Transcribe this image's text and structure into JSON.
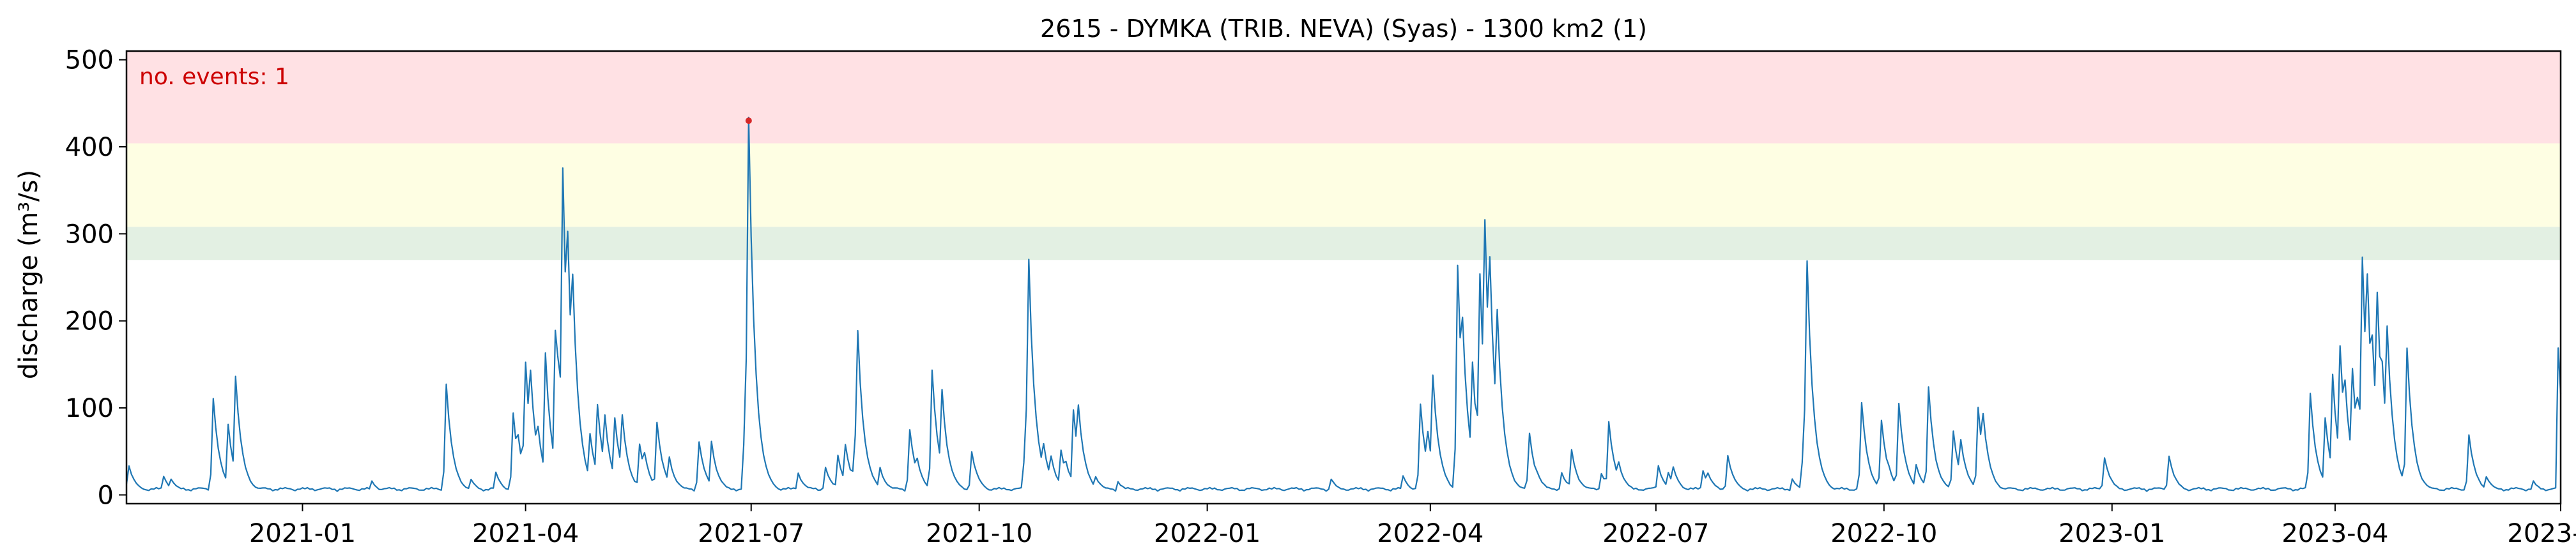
{
  "chart_data": {
    "type": "line",
    "title": "2615 - DYMKA (TRIB. NEVA) (Syas) - 1300 km2 (1)",
    "xlabel": "",
    "ylabel": "discharge (m³/s)",
    "xlim": [
      "2020-10-22",
      "2023-07-01"
    ],
    "ylim": [
      -10,
      510
    ],
    "x_ticks": [
      "2021-01",
      "2021-04",
      "2021-07",
      "2021-10",
      "2022-01",
      "2022-04",
      "2022-07",
      "2022-10",
      "2023-01",
      "2023-04",
      "2023-07"
    ],
    "y_ticks": [
      0,
      100,
      200,
      300,
      400,
      500
    ],
    "bands": [
      {
        "from": 270,
        "to": 308,
        "color": "#e3f0e3"
      },
      {
        "from": 308,
        "to": 404,
        "color": "#fefee3"
      },
      {
        "from": 404,
        "to": 510,
        "color": "#ffe1e4"
      }
    ],
    "annotation": "no. events: 1",
    "event": {
      "date": "2021-06-30",
      "value": 430,
      "color": "#d62728"
    },
    "series_color": "#1f77b4",
    "series": [
      {
        "peaks": [
          [
            "2020-10-23",
            30,
            3
          ],
          [
            "2020-11-06",
            18,
            2
          ],
          [
            "2020-11-09",
            15,
            2
          ],
          [
            "2020-11-26",
            108,
            2
          ],
          [
            "2020-12-02",
            78,
            2
          ],
          [
            "2020-12-05",
            133,
            2
          ],
          [
            "2021-01-29",
            12,
            2
          ],
          [
            "2021-02-28",
            124,
            2
          ],
          [
            "2021-03-10",
            14,
            2
          ],
          [
            "2021-03-20",
            22,
            2
          ],
          [
            "2021-03-27",
            90,
            2
          ],
          [
            "2021-03-29",
            65,
            2
          ],
          [
            "2021-04-01",
            150,
            3
          ],
          [
            "2021-04-03",
            140,
            2
          ],
          [
            "2021-04-06",
            75,
            2
          ],
          [
            "2021-04-09",
            160,
            2
          ],
          [
            "2021-04-13",
            185,
            2
          ],
          [
            "2021-04-14",
            155,
            2
          ],
          [
            "2021-04-16",
            372,
            3
          ],
          [
            "2021-04-18",
            300,
            3
          ],
          [
            "2021-04-20",
            250,
            3
          ],
          [
            "2021-04-27",
            68,
            2
          ],
          [
            "2021-04-30",
            100,
            2
          ],
          [
            "2021-05-03",
            88,
            2
          ],
          [
            "2021-05-07",
            85,
            2
          ],
          [
            "2021-05-10",
            88,
            2
          ],
          [
            "2021-05-17",
            55,
            2
          ],
          [
            "2021-05-19",
            45,
            2
          ],
          [
            "2021-05-24",
            80,
            2
          ],
          [
            "2021-05-29",
            40,
            2
          ],
          [
            "2021-06-10",
            58,
            2
          ],
          [
            "2021-06-15",
            58,
            2
          ],
          [
            "2021-06-30",
            430,
            3
          ],
          [
            "2021-07-20",
            22,
            2
          ],
          [
            "2021-07-31",
            28,
            2
          ],
          [
            "2021-08-05",
            42,
            2
          ],
          [
            "2021-08-08",
            55,
            2
          ],
          [
            "2021-08-13",
            185,
            3
          ],
          [
            "2021-08-22",
            28,
            2
          ],
          [
            "2021-09-03",
            72,
            2
          ],
          [
            "2021-09-06",
            38,
            2
          ],
          [
            "2021-09-12",
            140,
            2
          ],
          [
            "2021-09-16",
            118,
            2
          ],
          [
            "2021-09-28",
            46,
            2
          ],
          [
            "2021-10-21",
            268,
            3
          ],
          [
            "2021-10-27",
            55,
            2
          ],
          [
            "2021-10-30",
            42,
            2
          ],
          [
            "2021-11-03",
            48,
            2
          ],
          [
            "2021-11-05",
            35,
            2
          ],
          [
            "2021-11-08",
            95,
            2
          ],
          [
            "2021-11-10",
            100,
            2
          ],
          [
            "2021-11-17",
            18,
            2
          ],
          [
            "2021-11-26",
            12,
            2
          ],
          [
            "2022-02-20",
            15,
            2
          ],
          [
            "2022-03-21",
            18,
            2
          ],
          [
            "2022-03-28",
            100,
            2
          ],
          [
            "2022-03-31",
            70,
            2
          ],
          [
            "2022-04-02",
            135,
            2
          ],
          [
            "2022-04-12",
            260,
            2
          ],
          [
            "2022-04-14",
            200,
            2
          ],
          [
            "2022-04-18",
            150,
            2
          ],
          [
            "2022-04-21",
            250,
            3
          ],
          [
            "2022-04-23",
            312,
            3
          ],
          [
            "2022-04-25",
            270,
            3
          ],
          [
            "2022-04-28",
            210,
            3
          ],
          [
            "2022-05-11",
            67,
            2
          ],
          [
            "2022-05-14",
            25,
            2
          ],
          [
            "2022-05-24",
            22,
            2
          ],
          [
            "2022-05-28",
            48,
            2
          ],
          [
            "2022-06-09",
            22,
            2
          ],
          [
            "2022-06-12",
            80,
            2
          ],
          [
            "2022-06-16",
            35,
            2
          ],
          [
            "2022-07-02",
            30,
            2
          ],
          [
            "2022-07-06",
            22,
            2
          ],
          [
            "2022-07-08",
            28,
            2
          ],
          [
            "2022-07-20",
            25,
            2
          ],
          [
            "2022-07-22",
            22,
            2
          ],
          [
            "2022-07-30",
            42,
            2
          ],
          [
            "2022-08-25",
            15,
            2
          ],
          [
            "2022-08-31",
            266,
            3
          ],
          [
            "2022-09-22",
            102,
            2
          ],
          [
            "2022-09-30",
            82,
            2
          ],
          [
            "2022-10-03",
            30,
            2
          ],
          [
            "2022-10-07",
            102,
            2
          ],
          [
            "2022-10-14",
            32,
            2
          ],
          [
            "2022-10-19",
            120,
            2
          ],
          [
            "2022-10-29",
            70,
            2
          ],
          [
            "2022-11-01",
            60,
            2
          ],
          [
            "2022-11-08",
            98,
            2
          ],
          [
            "2022-11-10",
            90,
            2
          ],
          [
            "2022-12-29",
            40,
            2
          ],
          [
            "2023-01-24",
            42,
            2
          ],
          [
            "2023-03-22",
            113,
            2
          ],
          [
            "2023-03-28",
            85,
            2
          ],
          [
            "2023-03-31",
            135,
            2
          ],
          [
            "2023-04-03",
            168,
            2
          ],
          [
            "2023-04-05",
            128,
            2
          ],
          [
            "2023-04-08",
            142,
            2
          ],
          [
            "2023-04-10",
            110,
            2
          ],
          [
            "2023-04-12",
            270,
            3
          ],
          [
            "2023-04-14",
            250,
            2
          ],
          [
            "2023-04-16",
            180,
            2
          ],
          [
            "2023-04-18",
            230,
            2
          ],
          [
            "2023-04-20",
            150,
            2
          ],
          [
            "2023-04-22",
            190,
            2
          ],
          [
            "2023-04-30",
            165,
            2
          ],
          [
            "2023-05-25",
            65,
            2
          ],
          [
            "2023-06-01",
            18,
            2
          ],
          [
            "2023-06-20",
            12,
            2
          ],
          [
            "2023-06-30",
            165,
            1
          ]
        ]
      }
    ]
  }
}
